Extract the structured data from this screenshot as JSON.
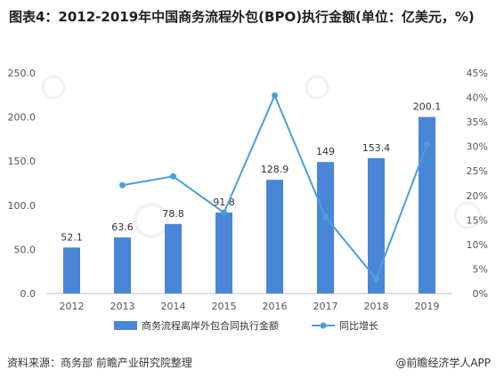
{
  "header": {
    "title": "图表4：2012-2019年中国商务流程外包(BPO)执行金额(单位：亿美元，%)"
  },
  "footer": {
    "source": "资料来源：商务部 前瞻产业研究院整理",
    "credit": "@前瞻经济学人APP"
  },
  "chart_data": {
    "type": "bar",
    "categories": [
      "2012",
      "2013",
      "2014",
      "2015",
      "2016",
      "2017",
      "2018",
      "2019"
    ],
    "series": [
      {
        "name": "商务流程离岸外包合同执行金额",
        "type": "bar",
        "axis": "left",
        "values": [
          52.1,
          63.6,
          78.8,
          91.8,
          128.9,
          149,
          153.4,
          200.1
        ],
        "labels": [
          "52.1",
          "63.6",
          "78.8",
          "91.8",
          "128.9",
          "149",
          "153.4",
          "200.1"
        ],
        "color": "#4a86d8"
      },
      {
        "name": "同比增长",
        "type": "line",
        "axis": "right",
        "values": [
          null,
          22.1,
          23.9,
          16.5,
          40.4,
          15.6,
          3.0,
          30.4
        ],
        "color": "#4a9fd8"
      }
    ],
    "y_left": {
      "min": 0,
      "max": 250,
      "ticks": [
        "0.0",
        "50.0",
        "100.0",
        "150.0",
        "200.0",
        "250.0"
      ]
    },
    "y_right": {
      "min": 0,
      "max": 45,
      "ticks": [
        "0%",
        "5%",
        "10%",
        "15%",
        "20%",
        "25%",
        "30%",
        "35%",
        "40%",
        "45%"
      ]
    },
    "grid": false,
    "legend": "bottom"
  }
}
